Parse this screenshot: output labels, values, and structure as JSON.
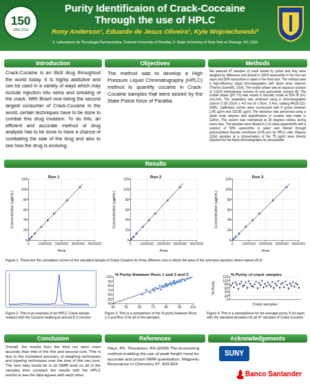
{
  "header": {
    "title_lines": [
      "Purity Identificaion of Crack-Coccaine",
      "Through the use of HPLC"
    ],
    "authors": "Rony Anderson¹, Eduardo de Jesus Oliveira¹, Kyle Wojciechowski²",
    "affiliation": "1- Laboratorio de Tecnologia Farmaceutica, Federal University of Paraiba; 2- State University of New York at Oswego, NY, USA",
    "logo_left": {
      "number": "150",
      "years": [
        "1861",
        "2011"
      ]
    }
  },
  "sections": {
    "introduction": {
      "heading": "Introduction",
      "text": "Crack-Cocaine is an illicit drug throughout the world today. It is highly addictive and can be used in a variety of ways which may include injection into veins and smoking of the crack. With Brazil now being the second largest consumer of Crack-Cocaine in the world, certain techniques have to be done to combat this drug invasion. To do this, an efficient and accurate method of drug analysis has to be done to have a chance of combating the sale of the drug and also to see how the drug is evolving."
    },
    "objectives": {
      "heading": "Objectives",
      "text": "The method was to develop a High Pressure Liquid Chromatography (HPLC) method to quantify cocaine in Crack-Cocaine samples that were seized by the State Police force of Paraiba"
    },
    "methods": {
      "heading": "Methods",
      "text": "We selected 47 samples of crack seized by police and they were weighed by difference and diluted in 100% acetonitrile in the first two races and 50% acetonitrile in water in the third race. The method used a high-efficiency liquid chromatography with diode array detector (Thermo Scientific, USA). The mobile phase was an aqueous solution of 0.01% triethylamine (solvent A) and acetonitrile (solvent B). The mobile phase (pH 7.5) was eluted in isocratic mode at 50% B (v/v) 1mL/min. The separation was achieved using a chromatographic column C-18 (10cm x 4.6 mm id x 5mm, 3 Ace, catalog #ACE-121-1546). Calibration curves were constructed with 8 points between 2.45 µg/ml and 103.85 µg/ml. The detection was performed using a diode array detector and quantification of cocaine was made to 224nm. The column was maintained at 30 degrees celsius during every race. The samples were diluted in 2 ml tubes eppendorffs with a solution of 50% acetonitrile in water and filtered through polyvinylidene fluoride membrane (0.45 µm) for HPLC vials. Aliquots (10ul) samples at a concentration of the 75 µg/ml were directly injected into the liquid chromatography by autosampler"
    },
    "results": {
      "heading": "Results"
    },
    "conclusion": {
      "heading": "Conclusion",
      "text": "Overall, the results from the third run were more accurate than that of the first and second runs. This is due to the increased accuracy of weighing techniques and pipeting techniques over the time of first two runs. The next step would be to do NMR tests on all of the samples then compare the results with the HPLC results to see the data agrees with each other."
    },
    "references": {
      "heading": "References",
      "text": "Hays, PA, Thompson, RA (2009) The processing method enabling the use of peak height need for accurate and proton NMR quantitation. Magnetic Resonance in Chemistry 47: 819-824"
    },
    "acknowledgements": {
      "heading": "Acknowledgements",
      "logos": [
        "SUNY",
        "Banco Santander"
      ]
    }
  },
  "captions": [
    "Figure 1. These are the correlation curves of the standard sample of Crack-Cocaine for three different runs in which the area of the unknown samples where based off of.",
    "Figure 2: This is an example of an HPLC Crack sample readout with the Cocaine peaking at around 6.3 minutes",
    "Figure 3. This is a comparison of the % purity between Runs 1-2 and Run 3 for all of the samples.",
    "Figure 4. This is a spreadsheet for the average purity, 6 for each, with the standard deviation for all 47 samples of Crack-Cocaine."
  ],
  "chart_data": [
    {
      "type": "scatter",
      "title": "Run 1",
      "xlabel": "Area",
      "ylabel": "Concentration (µg/mL)",
      "color": "#1f4e9c",
      "marker": "circle",
      "x": [
        75000,
        190000,
        390000,
        780000,
        1170000,
        1560000,
        2340000,
        3120000
      ],
      "values": [
        2.45,
        6.5,
        13,
        26,
        39,
        52,
        78,
        103.85
      ],
      "fit": {
        "x": [
          0,
          3300000
        ],
        "y": [
          0,
          110
        ]
      },
      "xlim": [
        0,
        4000000
      ],
      "xticks": [
        0,
        1000000,
        2000000,
        3000000,
        4000000
      ],
      "ylim": [
        0,
        120
      ],
      "yticks": [
        0,
        20,
        40,
        60,
        80,
        100,
        120
      ],
      "grid": true
    },
    {
      "type": "scatter",
      "title": "Run 2",
      "xlabel": "Area",
      "ylabel": "Concentration (µg/mL)",
      "color": "#1f4e9c",
      "marker": "circle",
      "x": [
        70000,
        180000,
        370000,
        750000,
        1120000,
        1500000,
        2250000,
        3000000
      ],
      "values": [
        2.45,
        6.5,
        13,
        26,
        39,
        52,
        78,
        103.85
      ],
      "fit": {
        "x": [
          0,
          3200000
        ],
        "y": [
          0,
          111
        ]
      },
      "xlim": [
        0,
        4000000
      ],
      "xticks": [
        0,
        1000000,
        2000000,
        3000000,
        4000000
      ],
      "ylim": [
        0,
        120
      ],
      "yticks": [
        0,
        20,
        40,
        60,
        80,
        100,
        120
      ],
      "grid": true
    },
    {
      "type": "scatter",
      "title": "Run 3",
      "xlabel": "Area",
      "ylabel": "Concentration (µg/mL)",
      "color": "#1f4e9c",
      "marker": "circle",
      "x": [
        80000,
        200000,
        410000,
        820000,
        1230000,
        1640000,
        2460000,
        3280000
      ],
      "values": [
        2.45,
        6.5,
        13,
        26,
        39,
        52,
        78,
        103.85
      ],
      "fit": {
        "x": [
          0,
          3500000
        ],
        "y": [
          0,
          111
        ]
      },
      "xlim": [
        0,
        4000000
      ],
      "xticks": [
        0,
        1000000,
        2000000,
        3000000,
        4000000
      ],
      "ylim": [
        0,
        120
      ],
      "yticks": [
        0,
        20,
        40,
        60,
        80,
        100,
        120
      ],
      "grid": true
    },
    {
      "type": "line",
      "color": "#1a3fd6",
      "tick_labels": false,
      "x": [
        0,
        1,
        2,
        3,
        4,
        5,
        5.8,
        6.0,
        6.2,
        6.3,
        6.4,
        6.6,
        7,
        8,
        9,
        10
      ],
      "values": [
        2,
        2,
        4,
        2,
        2,
        2,
        4,
        22,
        80,
        97,
        60,
        12,
        4,
        2,
        2,
        2
      ],
      "xlim": [
        0,
        10
      ],
      "ylim": [
        0,
        100
      ],
      "grid": false
    },
    {
      "type": "scatter",
      "title": "% Purity Between Runs 1 and 2 and 3",
      "color": "#3a7bd5",
      "marker": "circle",
      "x": [
        62,
        65,
        68,
        70,
        71,
        72,
        74,
        75,
        76,
        77,
        78,
        79,
        80,
        80,
        81,
        82,
        83,
        84,
        85,
        86,
        86,
        87,
        88,
        89,
        90,
        91,
        92,
        94,
        96,
        98
      ],
      "values": [
        60,
        70,
        64,
        72,
        68,
        75,
        73,
        80,
        71,
        79,
        76,
        82,
        78,
        84,
        80,
        83,
        86,
        81,
        88,
        84,
        90,
        85,
        89,
        87,
        92,
        88,
        94,
        91,
        95,
        97
      ],
      "fit": {
        "x": [
          40,
          100
        ],
        "y": [
          40,
          100
        ]
      },
      "xlim": [
        40,
        100
      ],
      "xticks": [
        40,
        50,
        60,
        70,
        80,
        90,
        100
      ],
      "ylim": [
        40,
        100
      ],
      "yticks": [
        40,
        50,
        60,
        70,
        80,
        90,
        100
      ],
      "grid": false
    },
    {
      "type": "scatter",
      "title": "% Purity of crack samples",
      "xlabel": "Crack samples",
      "ylabel": "% Purity",
      "color": "#1f2f6b",
      "marker": "diamond",
      "tick_labels": "y",
      "x": [
        1,
        2,
        3,
        4,
        5,
        6,
        7,
        8,
        9,
        10,
        11,
        12,
        13,
        14,
        15,
        16,
        17,
        18,
        19,
        20,
        21,
        22,
        23,
        24,
        25,
        26,
        27,
        28,
        29,
        30,
        31,
        32,
        33,
        34,
        35,
        36,
        37,
        38,
        39,
        40,
        41,
        42,
        43,
        44,
        45,
        46,
        47
      ],
      "values": [
        72,
        85,
        64,
        90,
        78,
        55,
        81,
        93,
        69,
        74,
        88,
        60,
        95,
        83,
        71,
        66,
        79,
        92,
        58,
        86,
        75,
        97,
        63,
        82,
        70,
        89,
        77,
        68,
        91,
        59,
        84,
        73,
        96,
        62,
        80,
        87,
        65,
        94,
        76,
        57,
        83,
        71,
        90,
        67,
        85,
        78,
        61
      ],
      "errors": [
        4,
        6,
        3,
        5,
        7,
        4,
        5,
        3,
        6,
        4,
        5,
        8,
        3,
        4,
        6,
        5,
        4,
        3,
        7,
        5,
        4,
        2,
        6,
        4,
        5,
        3,
        4,
        6,
        3,
        7,
        4,
        5,
        2,
        6,
        4,
        3,
        5,
        3,
        4,
        7,
        5,
        6,
        3,
        5,
        4,
        5,
        6
      ],
      "xlim": [
        0,
        48
      ],
      "ylim": [
        0,
        120
      ],
      "yticks": [
        0,
        20,
        40,
        60,
        80,
        100,
        120
      ],
      "grid": true
    }
  ]
}
